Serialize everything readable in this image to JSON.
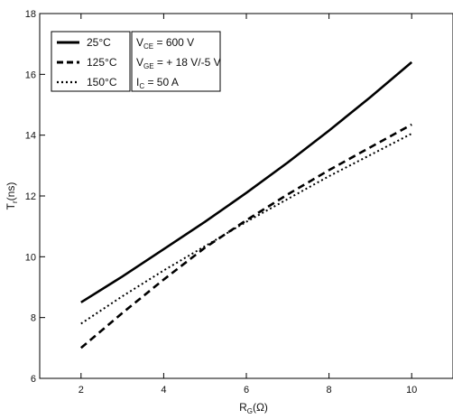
{
  "chart_data": {
    "type": "line",
    "xlabel": "R",
    "xlabel_sub": "G",
    "xlabel_unit": "(Ω)",
    "ylabel": "T",
    "ylabel_sub": "r",
    "ylabel_unit": "(ns)",
    "xlim": [
      1,
      11
    ],
    "ylim": [
      6,
      18
    ],
    "xticks": [
      2,
      4,
      6,
      8,
      10
    ],
    "yticks": [
      6,
      8,
      10,
      12,
      14,
      16,
      18
    ],
    "grid": false,
    "legend_position": "top-left",
    "series": [
      {
        "name": "25°C",
        "style": "solid",
        "color": "#000000",
        "x": [
          2,
          3,
          4,
          5,
          6,
          7,
          8,
          9,
          10
        ],
        "y": [
          8.5,
          9.35,
          10.25,
          11.15,
          12.1,
          13.1,
          14.15,
          15.25,
          16.4
        ]
      },
      {
        "name": "125°C",
        "style": "dashed",
        "color": "#000000",
        "x": [
          2,
          3,
          4,
          5,
          6,
          7,
          8,
          9,
          10
        ],
        "y": [
          7.0,
          8.15,
          9.25,
          10.3,
          11.2,
          12.05,
          12.85,
          13.6,
          14.35
        ]
      },
      {
        "name": "150°C",
        "style": "dotted",
        "color": "#000000",
        "x": [
          2,
          3,
          4,
          5,
          6,
          7,
          8,
          9,
          10
        ],
        "y": [
          7.8,
          8.7,
          9.55,
          10.35,
          11.15,
          11.9,
          12.65,
          13.35,
          14.05
        ]
      }
    ],
    "conditions": [
      {
        "main": "V",
        "sub": "CE",
        "rest": " = 600 V"
      },
      {
        "main": "V",
        "sub": "GE",
        "rest": " = + 18 V/-5 V"
      },
      {
        "main": "I",
        "sub": "C",
        "rest": " = 50 A"
      }
    ]
  }
}
